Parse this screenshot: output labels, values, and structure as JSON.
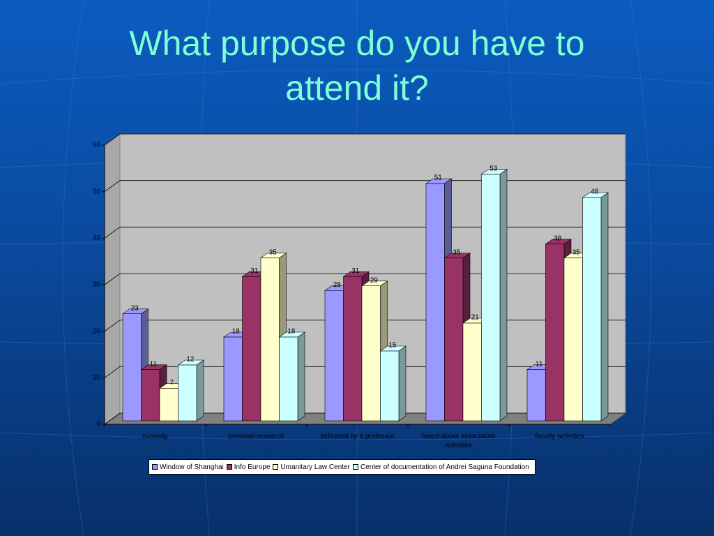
{
  "chart_data": {
    "type": "bar3d",
    "title": "What purpose do you have to attend it?",
    "categories": [
      "curiosity",
      "personal research",
      "indicated by a professor",
      "heard about association activities",
      "faculty activities"
    ],
    "series": [
      {
        "name": "Window of Shanghai",
        "color": "#9999ff",
        "values": [
          23,
          18,
          28,
          51,
          11
        ]
      },
      {
        "name": "Info Europe",
        "color": "#993366",
        "values": [
          11,
          31,
          31,
          35,
          38
        ]
      },
      {
        "name": "Umanitary Law Center",
        "color": "#ffffcc",
        "values": [
          7,
          35,
          29,
          21,
          35
        ]
      },
      {
        "name": "Center of documentation of Andrei Saguna Foundation",
        "color": "#ccffff",
        "values": [
          12,
          18,
          15,
          53,
          48
        ]
      }
    ],
    "ylim": [
      0,
      60
    ],
    "yticks": [
      0,
      10,
      20,
      30,
      40,
      50,
      60
    ],
    "grid": true,
    "legend": "bottom"
  }
}
